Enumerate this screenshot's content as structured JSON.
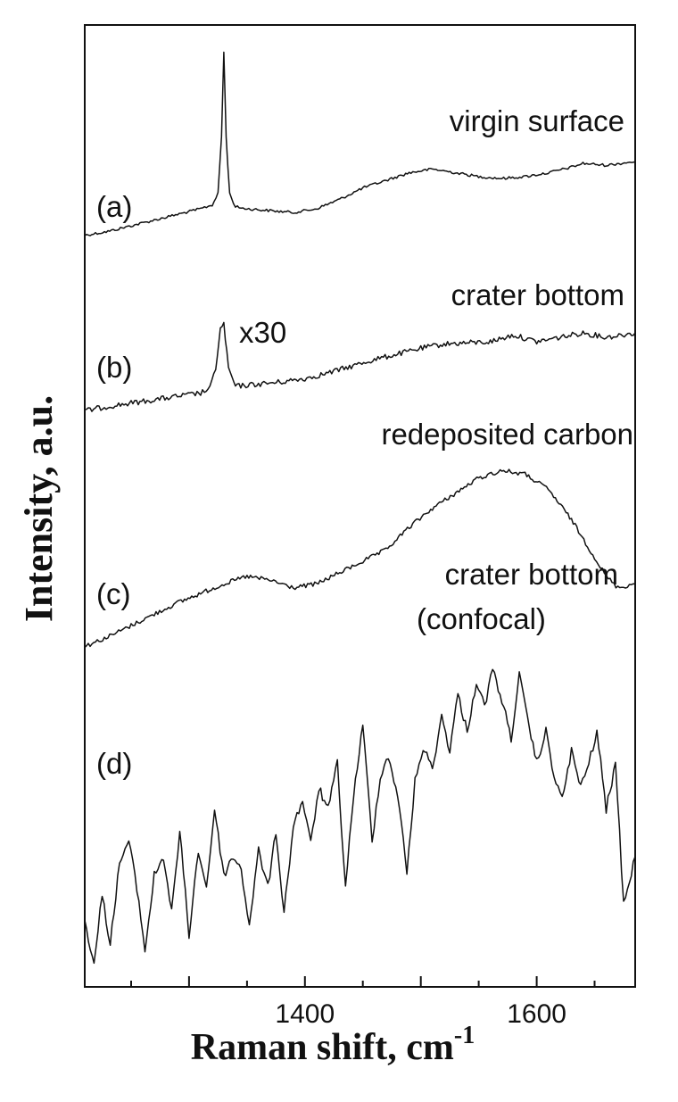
{
  "chart_data": {
    "type": "line",
    "xlabel": "Raman shift, cm",
    "xlabel_sup": "-1",
    "ylabel": "Intensity, a.u.",
    "xlim": [
      1210,
      1685
    ],
    "x_ticks": [
      1400,
      1600
    ],
    "x_tick_labels": [
      "1400",
      "1600"
    ],
    "y_ticks": "none",
    "grid": false,
    "legend": "none",
    "series": [
      {
        "name": "(a)",
        "label": "virgin surface",
        "x": [
          1210,
          1230,
          1250,
          1270,
          1290,
          1310,
          1320,
          1325,
          1328,
          1330,
          1332,
          1335,
          1340,
          1350,
          1370,
          1390,
          1410,
          1430,
          1450,
          1470,
          1490,
          1510,
          1530,
          1550,
          1570,
          1590,
          1610,
          1630,
          1640,
          1660,
          1685
        ],
        "y": [
          0.03,
          0.05,
          0.08,
          0.11,
          0.14,
          0.17,
          0.19,
          0.25,
          0.55,
          1.0,
          0.55,
          0.25,
          0.18,
          0.17,
          0.16,
          0.15,
          0.17,
          0.22,
          0.28,
          0.32,
          0.36,
          0.38,
          0.36,
          0.34,
          0.33,
          0.34,
          0.36,
          0.39,
          0.41,
          0.4,
          0.42
        ]
      },
      {
        "name": "(b)",
        "label": "crater bottom",
        "annotation": "x30",
        "x": [
          1210,
          1230,
          1250,
          1270,
          1290,
          1310,
          1318,
          1323,
          1327,
          1330,
          1334,
          1340,
          1360,
          1380,
          1400,
          1420,
          1440,
          1460,
          1480,
          1500,
          1520,
          1540,
          1560,
          1580,
          1600,
          1620,
          1640,
          1660,
          1685
        ],
        "y": [
          0.02,
          0.06,
          0.09,
          0.12,
          0.15,
          0.18,
          0.22,
          0.4,
          0.75,
          0.8,
          0.4,
          0.24,
          0.26,
          0.28,
          0.31,
          0.36,
          0.42,
          0.48,
          0.53,
          0.58,
          0.62,
          0.63,
          0.64,
          0.7,
          0.64,
          0.68,
          0.72,
          0.68,
          0.72
        ]
      },
      {
        "name": "(c)",
        "label": "redeposited carbon",
        "x": [
          1210,
          1230,
          1250,
          1270,
          1290,
          1310,
          1330,
          1350,
          1370,
          1390,
          1410,
          1430,
          1450,
          1470,
          1490,
          1510,
          1530,
          1550,
          1570,
          1590,
          1610,
          1630,
          1650,
          1660,
          1670,
          1685
        ],
        "y": [
          0.05,
          0.1,
          0.16,
          0.22,
          0.28,
          0.33,
          0.38,
          0.42,
          0.4,
          0.36,
          0.38,
          0.44,
          0.5,
          0.56,
          0.68,
          0.78,
          0.86,
          0.94,
          0.98,
          0.96,
          0.88,
          0.72,
          0.52,
          0.42,
          0.36,
          0.38
        ]
      },
      {
        "name": "(d)",
        "label": "crater bottom (confocal)",
        "x": [
          1210,
          1218,
          1225,
          1232,
          1240,
          1248,
          1255,
          1262,
          1270,
          1278,
          1285,
          1292,
          1300,
          1308,
          1315,
          1322,
          1330,
          1338,
          1345,
          1352,
          1360,
          1368,
          1375,
          1382,
          1390,
          1398,
          1405,
          1412,
          1420,
          1428,
          1435,
          1442,
          1450,
          1458,
          1465,
          1472,
          1480,
          1488,
          1495,
          1502,
          1510,
          1518,
          1525,
          1532,
          1540,
          1548,
          1555,
          1562,
          1570,
          1578,
          1585,
          1592,
          1600,
          1608,
          1615,
          1622,
          1630,
          1638,
          1645,
          1652,
          1660,
          1668,
          1675,
          1685
        ],
        "y": [
          0.2,
          0.05,
          0.28,
          0.12,
          0.38,
          0.45,
          0.3,
          0.1,
          0.34,
          0.4,
          0.22,
          0.48,
          0.15,
          0.42,
          0.3,
          0.55,
          0.34,
          0.4,
          0.36,
          0.18,
          0.42,
          0.3,
          0.48,
          0.22,
          0.5,
          0.58,
          0.44,
          0.62,
          0.55,
          0.7,
          0.3,
          0.6,
          0.82,
          0.45,
          0.66,
          0.72,
          0.6,
          0.35,
          0.64,
          0.75,
          0.68,
          0.85,
          0.74,
          0.92,
          0.8,
          0.96,
          0.88,
          1.0,
          0.9,
          0.78,
          0.98,
          0.84,
          0.7,
          0.8,
          0.66,
          0.58,
          0.74,
          0.62,
          0.7,
          0.8,
          0.55,
          0.7,
          0.25,
          0.4
        ]
      }
    ],
    "panel_labels": {
      "a": "(a)",
      "b": "(b)",
      "c": "(c)",
      "d": "(d)"
    },
    "annotations": {
      "virgin_surface": "virgin surface",
      "crater_bottom": "crater bottom",
      "x30": "x30",
      "redeposited_carbon": "redeposited carbon",
      "crater_bottom_confocal_1": "crater bottom",
      "crater_bottom_confocal_2": "(confocal)"
    }
  }
}
